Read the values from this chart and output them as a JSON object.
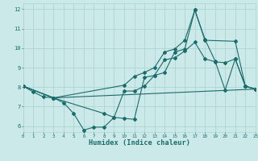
{
  "xlabel": "Humidex (Indice chaleur)",
  "xlim": [
    0,
    23
  ],
  "ylim": [
    5.7,
    12.3
  ],
  "yticks": [
    6,
    7,
    8,
    9,
    10,
    11,
    12
  ],
  "xticks": [
    0,
    1,
    2,
    3,
    4,
    5,
    6,
    7,
    8,
    9,
    10,
    11,
    12,
    13,
    14,
    15,
    16,
    17,
    18,
    19,
    20,
    21,
    22,
    23
  ],
  "bg_color": "#cce9e9",
  "grid_color": "#aed4d4",
  "line_color": "#1a6b6b",
  "lines": [
    {
      "x": [
        0,
        1,
        2,
        3,
        4,
        5,
        6,
        7,
        8,
        9,
        10,
        11,
        12,
        13,
        14,
        15,
        16,
        17,
        18,
        19,
        20,
        21,
        22,
        23
      ],
      "y": [
        8.05,
        7.75,
        7.5,
        7.45,
        7.2,
        6.65,
        5.8,
        5.95,
        5.95,
        6.45,
        6.4,
        6.35,
        8.5,
        8.6,
        8.75,
        9.8,
        9.95,
        11.95,
        10.45,
        9.35,
        7.85,
        9.45,
        8.05,
        7.9
      ]
    },
    {
      "x": [
        0,
        3,
        10,
        11,
        12,
        13,
        14,
        15,
        16,
        17,
        18,
        21,
        22,
        23
      ],
      "y": [
        8.05,
        7.45,
        8.1,
        8.55,
        8.75,
        9.0,
        9.8,
        9.95,
        10.4,
        11.95,
        10.4,
        10.35,
        8.05,
        7.9
      ]
    },
    {
      "x": [
        0,
        3,
        23
      ],
      "y": [
        8.05,
        7.45,
        7.9
      ]
    },
    {
      "x": [
        0,
        3,
        8,
        9,
        10,
        11,
        12,
        13,
        14,
        15,
        16,
        17,
        18,
        19,
        20,
        21,
        22,
        23
      ],
      "y": [
        8.05,
        7.45,
        6.65,
        6.45,
        7.8,
        7.8,
        8.05,
        8.6,
        9.4,
        9.5,
        9.85,
        10.3,
        9.45,
        9.3,
        9.25,
        9.45,
        8.05,
        7.9
      ]
    }
  ]
}
